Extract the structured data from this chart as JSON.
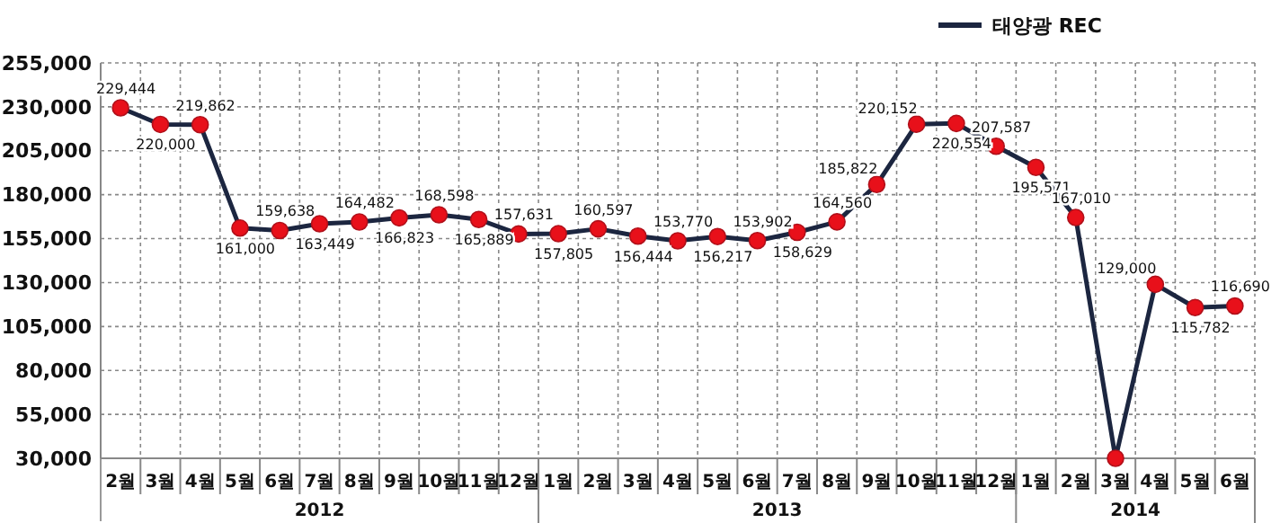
{
  "chart_data": {
    "type": "line",
    "categories": [
      "2월",
      "3월",
      "4월",
      "5월",
      "6월",
      "7월",
      "8월",
      "9월",
      "10월",
      "11월",
      "12월",
      "1월",
      "2월",
      "3월",
      "4월",
      "5월",
      "6월",
      "7월",
      "8월",
      "9월",
      "10월",
      "11월",
      "12월",
      "1월",
      "2월",
      "3월",
      "4월",
      "5월",
      "6월"
    ],
    "annotations": [
      "2012",
      "2013",
      "2014"
    ],
    "series": [
      {
        "name": "태양광 REC",
        "color": "#1c2640",
        "values": [
          229444,
          220000,
          219862,
          161000,
          159638,
          163449,
          164482,
          166823,
          168598,
          165889,
          157631,
          157805,
          160597,
          156444,
          153770,
          156217,
          153902,
          158629,
          164560,
          185822,
          220152,
          220554,
          207587,
          195571,
          167010,
          30000,
          129000,
          115782,
          116690
        ],
        "value_labels": [
          "229,444",
          "220,000",
          "219,862",
          "161,000",
          "159,638",
          "163,449",
          "164,482",
          "166,823",
          "168,598",
          "165,889",
          "157,631",
          "157,805",
          "160,597",
          "156,444",
          "153,770",
          "156,217",
          "153,902",
          "158,629",
          "164,560",
          "185,822",
          "220,152",
          "220,554",
          "207,587",
          "195,571",
          "167,010",
          null,
          "129,000",
          "115,782",
          "116,690"
        ]
      }
    ],
    "ylim": [
      30000,
      255000
    ],
    "yticks": [
      {
        "value": 30000,
        "label": "30,000"
      },
      {
        "value": 55000,
        "label": "55,000"
      },
      {
        "value": 80000,
        "label": "80,000"
      },
      {
        "value": 105000,
        "label": "105,000"
      },
      {
        "value": 130000,
        "label": "130,000"
      },
      {
        "value": 155000,
        "label": "155,000"
      },
      {
        "value": 180000,
        "label": "180,000"
      },
      {
        "value": 205000,
        "label": "205,000"
      },
      {
        "value": 230000,
        "label": "230,000"
      },
      {
        "value": 255000,
        "label": "255,000"
      }
    ],
    "grid": true,
    "legend": "top right",
    "marker": "circle",
    "line_style": "solid"
  }
}
